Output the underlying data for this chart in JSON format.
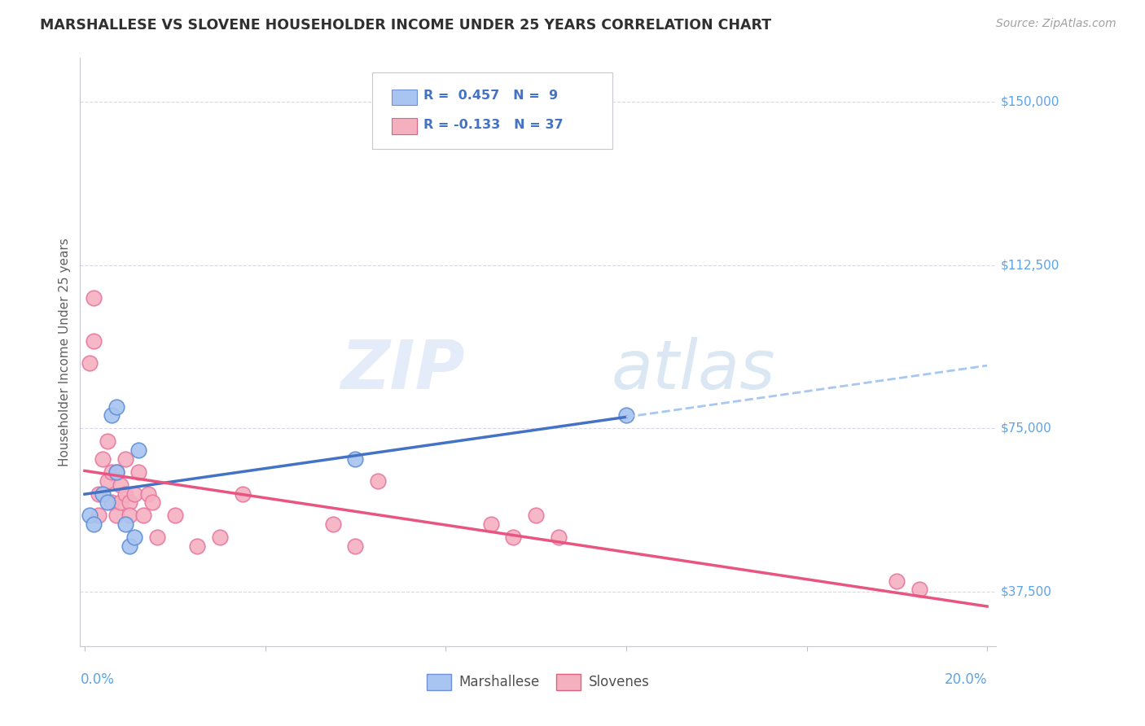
{
  "title": "MARSHALLESE VS SLOVENE HOUSEHOLDER INCOME UNDER 25 YEARS CORRELATION CHART",
  "source": "Source: ZipAtlas.com",
  "ylabel": "Householder Income Under 25 years",
  "xlim": [
    0.0,
    0.2
  ],
  "ylim": [
    25000,
    160000
  ],
  "yticks": [
    37500,
    75000,
    112500,
    150000
  ],
  "ytick_labels": [
    "$37,500",
    "$75,000",
    "$112,500",
    "$150,000"
  ],
  "watermark_zip": "ZIP",
  "watermark_atlas": "atlas",
  "blue_color": "#a8c4f0",
  "pink_color": "#f5b0c0",
  "blue_line_color": "#4472c4",
  "pink_line_color": "#e85580",
  "dashed_line_color": "#a8c8f0",
  "grid_color": "#d8d8e8",
  "title_color": "#303030",
  "source_color": "#a0a0a0",
  "axis_label_color": "#606060",
  "right_label_color": "#5ba3e8",
  "marshallese_x": [
    0.001,
    0.002,
    0.004,
    0.005,
    0.006,
    0.007,
    0.007,
    0.009,
    0.01,
    0.011,
    0.012,
    0.06,
    0.12
  ],
  "marshallese_y": [
    55000,
    53000,
    60000,
    58000,
    78000,
    80000,
    65000,
    53000,
    48000,
    50000,
    70000,
    68000,
    78000
  ],
  "slovene_x": [
    0.001,
    0.002,
    0.002,
    0.003,
    0.003,
    0.004,
    0.005,
    0.005,
    0.006,
    0.006,
    0.007,
    0.007,
    0.008,
    0.008,
    0.009,
    0.009,
    0.01,
    0.01,
    0.011,
    0.012,
    0.013,
    0.014,
    0.015,
    0.016,
    0.02,
    0.025,
    0.03,
    0.035,
    0.055,
    0.06,
    0.065,
    0.09,
    0.095,
    0.1,
    0.105,
    0.18,
    0.185
  ],
  "slovene_y": [
    90000,
    105000,
    95000,
    60000,
    55000,
    68000,
    63000,
    72000,
    65000,
    58000,
    65000,
    55000,
    62000,
    58000,
    68000,
    60000,
    58000,
    55000,
    60000,
    65000,
    55000,
    60000,
    58000,
    50000,
    55000,
    48000,
    50000,
    60000,
    53000,
    48000,
    63000,
    53000,
    50000,
    55000,
    50000,
    40000,
    38000
  ]
}
